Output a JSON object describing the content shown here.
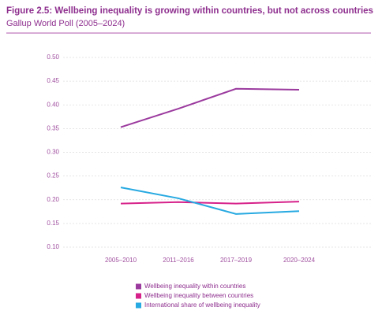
{
  "chart_data": {
    "type": "line",
    "title": "Figure 2.5: Wellbeing inequality is growing within countries, but not across countries",
    "subtitle": "Gallup World Poll (2005–2024)",
    "categories": [
      "2005–2010",
      "2011–2016",
      "2017–2019",
      "2020–2024"
    ],
    "series": [
      {
        "name": "Wellbeing inequality within countries",
        "color": "#9b3a9e",
        "values": [
          0.353,
          0.392,
          0.434,
          0.432
        ]
      },
      {
        "name": "Wellbeing inequality between countries",
        "color": "#d6218a",
        "values": [
          0.192,
          0.195,
          0.192,
          0.196
        ]
      },
      {
        "name": "International share of wellbeing inequality",
        "color": "#27a9e1",
        "values": [
          0.226,
          0.203,
          0.17,
          0.176
        ]
      }
    ],
    "ylim": [
      0.1,
      0.5
    ],
    "yticks": [
      {
        "value": 0.1,
        "label": "0.10"
      },
      {
        "value": 0.15,
        "label": "0.15"
      },
      {
        "value": 0.2,
        "label": "0.20"
      },
      {
        "value": 0.25,
        "label": "0.25"
      },
      {
        "value": 0.3,
        "label": "0.30"
      },
      {
        "value": 0.35,
        "label": "0.35"
      },
      {
        "value": 0.4,
        "label": "0.40"
      },
      {
        "value": 0.45,
        "label": "0.45"
      },
      {
        "value": 0.5,
        "label": "0.50"
      }
    ],
    "grid": true
  }
}
